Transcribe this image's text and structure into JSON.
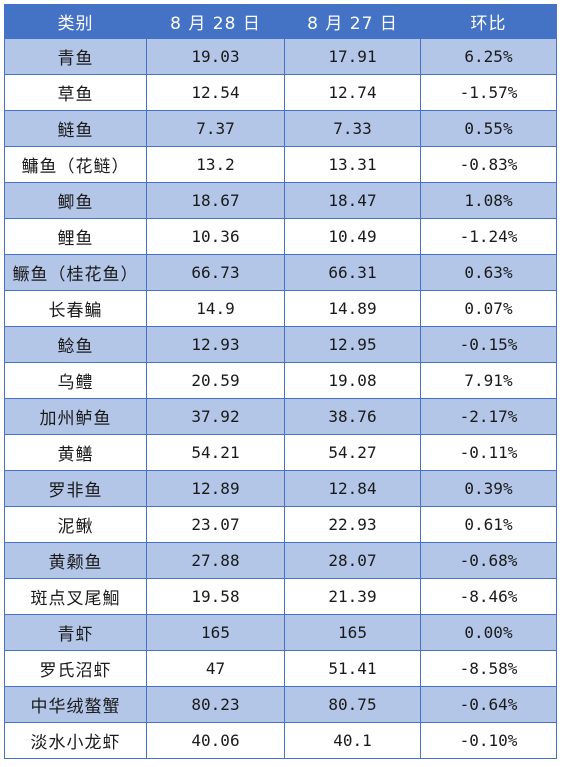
{
  "header": {
    "category": "类别",
    "date1": "8 月 28 日",
    "date2": "8 月 27 日",
    "change": "环比"
  },
  "rows": [
    {
      "name": "青鱼",
      "aug28": "19.03",
      "aug27": "17.91",
      "change": "6.25%"
    },
    {
      "name": "草鱼",
      "aug28": "12.54",
      "aug27": "12.74",
      "change": "-1.57%"
    },
    {
      "name": "鲢鱼",
      "aug28": "7.37",
      "aug27": "7.33",
      "change": "0.55%"
    },
    {
      "name": "鳙鱼（花鲢）",
      "aug28": "13.2",
      "aug27": "13.31",
      "change": "-0.83%"
    },
    {
      "name": "鲫鱼",
      "aug28": "18.67",
      "aug27": "18.47",
      "change": "1.08%"
    },
    {
      "name": "鲤鱼",
      "aug28": "10.36",
      "aug27": "10.49",
      "change": "-1.24%"
    },
    {
      "name": "鳜鱼（桂花鱼）",
      "aug28": "66.73",
      "aug27": "66.31",
      "change": "0.63%"
    },
    {
      "name": "长春鳊",
      "aug28": "14.9",
      "aug27": "14.89",
      "change": "0.07%"
    },
    {
      "name": "鲶鱼",
      "aug28": "12.93",
      "aug27": "12.95",
      "change": "-0.15%"
    },
    {
      "name": "乌鳢",
      "aug28": "20.59",
      "aug27": "19.08",
      "change": "7.91%"
    },
    {
      "name": "加州鲈鱼",
      "aug28": "37.92",
      "aug27": "38.76",
      "change": "-2.17%"
    },
    {
      "name": "黄鳝",
      "aug28": "54.21",
      "aug27": "54.27",
      "change": "-0.11%"
    },
    {
      "name": "罗非鱼",
      "aug28": "12.89",
      "aug27": "12.84",
      "change": "0.39%"
    },
    {
      "name": "泥鳅",
      "aug28": "23.07",
      "aug27": "22.93",
      "change": "0.61%"
    },
    {
      "name": "黄颡鱼",
      "aug28": "27.88",
      "aug27": "28.07",
      "change": "-0.68%"
    },
    {
      "name": "斑点叉尾鮰",
      "aug28": "19.58",
      "aug27": "21.39",
      "change": "-8.46%"
    },
    {
      "name": "青虾",
      "aug28": "165",
      "aug27": "165",
      "change": "0.00%"
    },
    {
      "name": "罗氏沼虾",
      "aug28": "47",
      "aug27": "51.41",
      "change": "-8.58%"
    },
    {
      "name": "中华绒螯蟹",
      "aug28": "80.23",
      "aug27": "80.75",
      "change": "-0.64%"
    },
    {
      "name": "淡水小龙虾",
      "aug28": "40.06",
      "aug27": "40.1",
      "change": "-0.10%"
    }
  ],
  "colors": {
    "header_bg": "#4472c4",
    "odd_row_bg": "#b4c6e7",
    "even_row_bg": "#ffffff"
  }
}
